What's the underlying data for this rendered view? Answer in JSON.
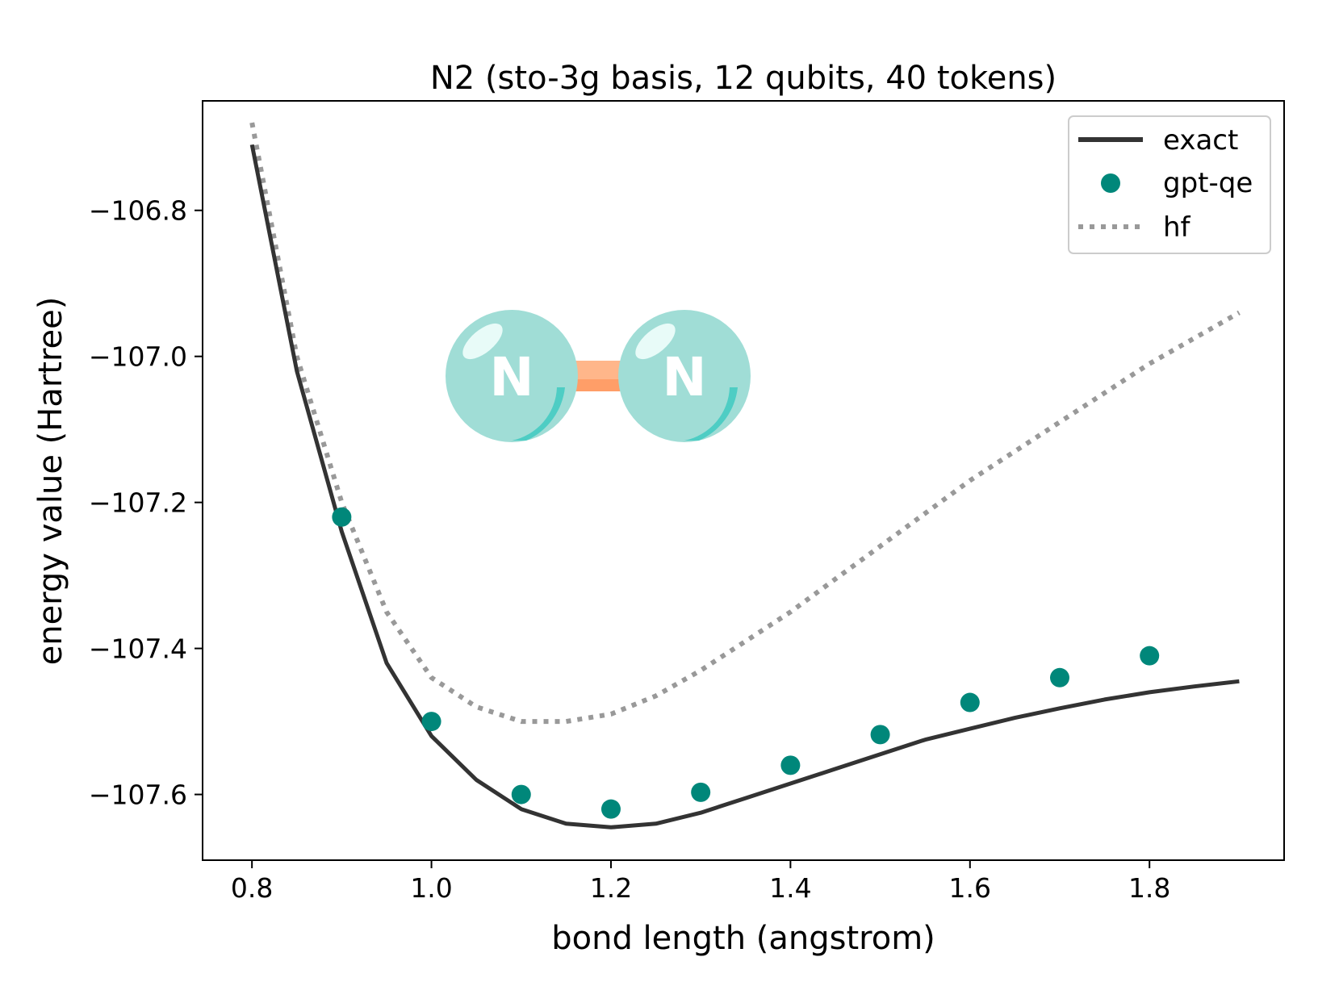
{
  "chart_data": {
    "type": "line",
    "title": "N2 (sto-3g basis, 12 qubits, 40 tokens)",
    "xlabel": "bond length (angstrom)",
    "ylabel": "energy value (Hartree)",
    "xlim": [
      0.745,
      1.95
    ],
    "ylim": [
      -107.69,
      -106.65
    ],
    "xticks": [
      0.8,
      1.0,
      1.2,
      1.4,
      1.6,
      1.8
    ],
    "xtick_labels": [
      "0.8",
      "1.0",
      "1.2",
      "1.4",
      "1.6",
      "1.8"
    ],
    "yticks": [
      -106.8,
      -107.0,
      -107.2,
      -107.4,
      -107.6
    ],
    "ytick_labels": [
      "−106.8",
      "−107.0",
      "−107.2",
      "−107.4",
      "−107.6"
    ],
    "grid": false,
    "legend_position": "top-right",
    "series": [
      {
        "name": "exact",
        "style": "solid-line",
        "color": "#333333",
        "x": [
          0.8,
          0.85,
          0.9,
          0.95,
          1.0,
          1.05,
          1.1,
          1.15,
          1.2,
          1.25,
          1.3,
          1.35,
          1.4,
          1.45,
          1.5,
          1.55,
          1.6,
          1.65,
          1.7,
          1.75,
          1.8,
          1.85,
          1.9
        ],
        "y": [
          -106.71,
          -107.02,
          -107.24,
          -107.42,
          -107.52,
          -107.58,
          -107.62,
          -107.64,
          -107.645,
          -107.64,
          -107.625,
          -107.605,
          -107.585,
          -107.565,
          -107.545,
          -107.525,
          -107.51,
          -107.495,
          -107.482,
          -107.47,
          -107.46,
          -107.452,
          -107.445
        ]
      },
      {
        "name": "gpt-qe",
        "style": "markers",
        "color": "#00877a",
        "x": [
          0.9,
          1.0,
          1.1,
          1.2,
          1.3,
          1.4,
          1.5,
          1.6,
          1.7,
          1.8
        ],
        "y": [
          -107.22,
          -107.5,
          -107.6,
          -107.62,
          -107.597,
          -107.56,
          -107.518,
          -107.474,
          -107.44,
          -107.41
        ]
      },
      {
        "name": "hf",
        "style": "dotted-line",
        "color": "#999999",
        "x": [
          0.8,
          0.85,
          0.9,
          0.95,
          1.0,
          1.05,
          1.1,
          1.15,
          1.2,
          1.25,
          1.3,
          1.35,
          1.4,
          1.45,
          1.5,
          1.55,
          1.6,
          1.65,
          1.7,
          1.75,
          1.8,
          1.85,
          1.9
        ],
        "y": [
          -106.68,
          -107.0,
          -107.2,
          -107.35,
          -107.44,
          -107.48,
          -107.5,
          -107.5,
          -107.49,
          -107.465,
          -107.43,
          -107.39,
          -107.35,
          -107.305,
          -107.26,
          -107.215,
          -107.17,
          -107.13,
          -107.09,
          -107.05,
          -107.01,
          -106.975,
          -106.94
        ]
      }
    ],
    "inset_molecule": {
      "atoms": [
        "N",
        "N"
      ],
      "atom_color": "#a0ddd6",
      "bond_color": "#ffb68a"
    }
  }
}
